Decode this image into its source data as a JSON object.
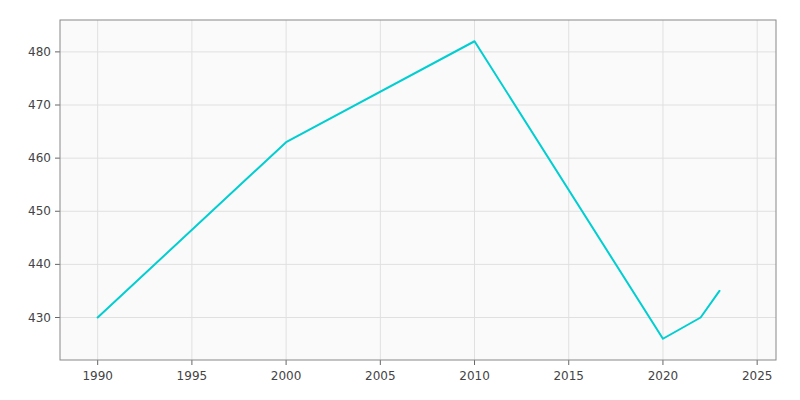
{
  "chart_data": {
    "type": "line",
    "x": [
      1990,
      2000,
      2010,
      2020,
      2022,
      2023
    ],
    "values": [
      430,
      463,
      482,
      426,
      430,
      435
    ],
    "color": "#00CED1",
    "xlim": [
      1988,
      2026
    ],
    "ylim": [
      422,
      486
    ],
    "xticks": [
      1990,
      1995,
      2000,
      2005,
      2010,
      2015,
      2020,
      2025
    ],
    "yticks": [
      430,
      440,
      450,
      460,
      470,
      480
    ],
    "grid": true
  }
}
